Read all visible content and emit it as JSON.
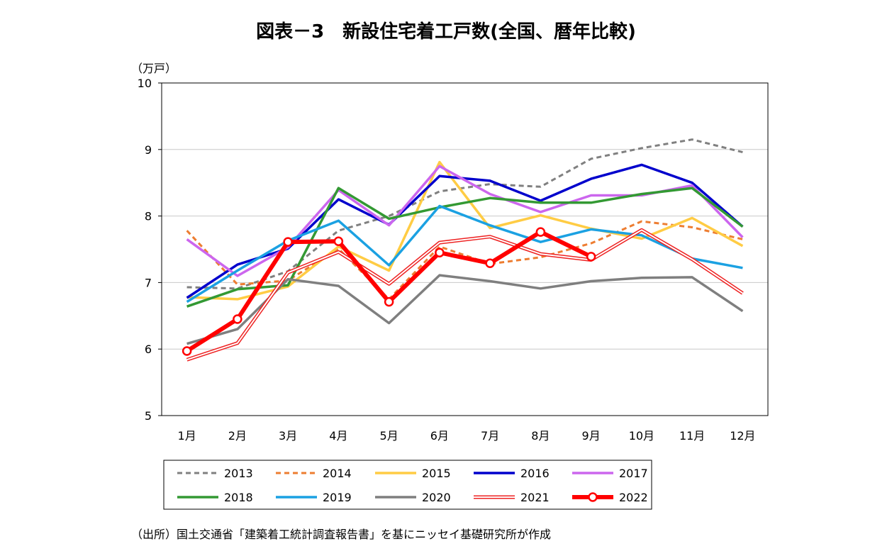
{
  "chart_data": {
    "type": "line",
    "title": "図表－3　新設住宅着工戸数(全国、暦年比較)",
    "unit_label": "（万戸）",
    "source": "（出所）国土交通省「建築着工統計調査報告書」を基にニッセイ基礎研究所が作成",
    "categories": [
      "1月",
      "2月",
      "3月",
      "4月",
      "5月",
      "6月",
      "7月",
      "8月",
      "9月",
      "10月",
      "11月",
      "12月"
    ],
    "ylim": [
      5,
      10
    ],
    "yticks": [
      5,
      6,
      7,
      8,
      9,
      10
    ],
    "grid": true,
    "legend_position": "bottom",
    "series": [
      {
        "name": "2013",
        "color": "#808080",
        "style": "dashed",
        "values": [
          6.93,
          6.91,
          7.17,
          7.78,
          8.0,
          8.37,
          8.48,
          8.44,
          8.86,
          9.02,
          9.15,
          8.96
        ]
      },
      {
        "name": "2014",
        "color": "#ED7D31",
        "style": "dashed",
        "values": [
          7.78,
          6.97,
          7.03,
          7.51,
          6.75,
          7.54,
          7.28,
          7.38,
          7.59,
          7.92,
          7.83,
          7.65
        ]
      },
      {
        "name": "2015",
        "color": "#FFCC44",
        "style": "solid",
        "values": [
          6.78,
          6.75,
          6.94,
          7.54,
          7.18,
          8.81,
          7.82,
          8.01,
          7.81,
          7.66,
          7.97,
          7.55
        ]
      },
      {
        "name": "2016",
        "color": "#0000CC",
        "style": "solid",
        "values": [
          6.77,
          7.27,
          7.51,
          8.25,
          7.87,
          8.6,
          8.53,
          8.23,
          8.56,
          8.77,
          8.5,
          7.84
        ]
      },
      {
        "name": "2017",
        "color": "#CC66EE",
        "style": "solid",
        "values": [
          7.65,
          7.1,
          7.53,
          8.39,
          7.86,
          8.75,
          8.33,
          8.06,
          8.31,
          8.31,
          8.46,
          7.68
        ]
      },
      {
        "name": "2018",
        "color": "#339933",
        "style": "solid",
        "values": [
          6.64,
          6.9,
          6.96,
          8.42,
          7.96,
          8.13,
          8.27,
          8.2,
          8.2,
          8.33,
          8.42,
          7.84
        ]
      },
      {
        "name": "2019",
        "color": "#1BA1E2",
        "style": "solid",
        "values": [
          6.71,
          7.18,
          7.63,
          7.93,
          7.26,
          8.15,
          7.86,
          7.61,
          7.8,
          7.71,
          7.36,
          7.22
        ]
      },
      {
        "name": "2020",
        "color": "#7F7F7F",
        "style": "solid",
        "values": [
          6.08,
          6.3,
          7.05,
          6.95,
          6.39,
          7.11,
          7.02,
          6.91,
          7.02,
          7.07,
          7.08,
          6.57
        ]
      },
      {
        "name": "2021",
        "color": "#EE2222",
        "style": "double",
        "values": [
          5.84,
          6.09,
          7.15,
          7.46,
          6.98,
          7.6,
          7.69,
          7.43,
          7.34,
          7.79,
          7.35,
          6.84
        ]
      },
      {
        "name": "2022",
        "color": "#FF0000",
        "style": "bold-marker",
        "values": [
          5.97,
          6.45,
          7.61,
          7.62,
          6.71,
          7.45,
          7.29,
          7.76,
          7.39,
          null,
          null,
          null
        ]
      }
    ]
  }
}
